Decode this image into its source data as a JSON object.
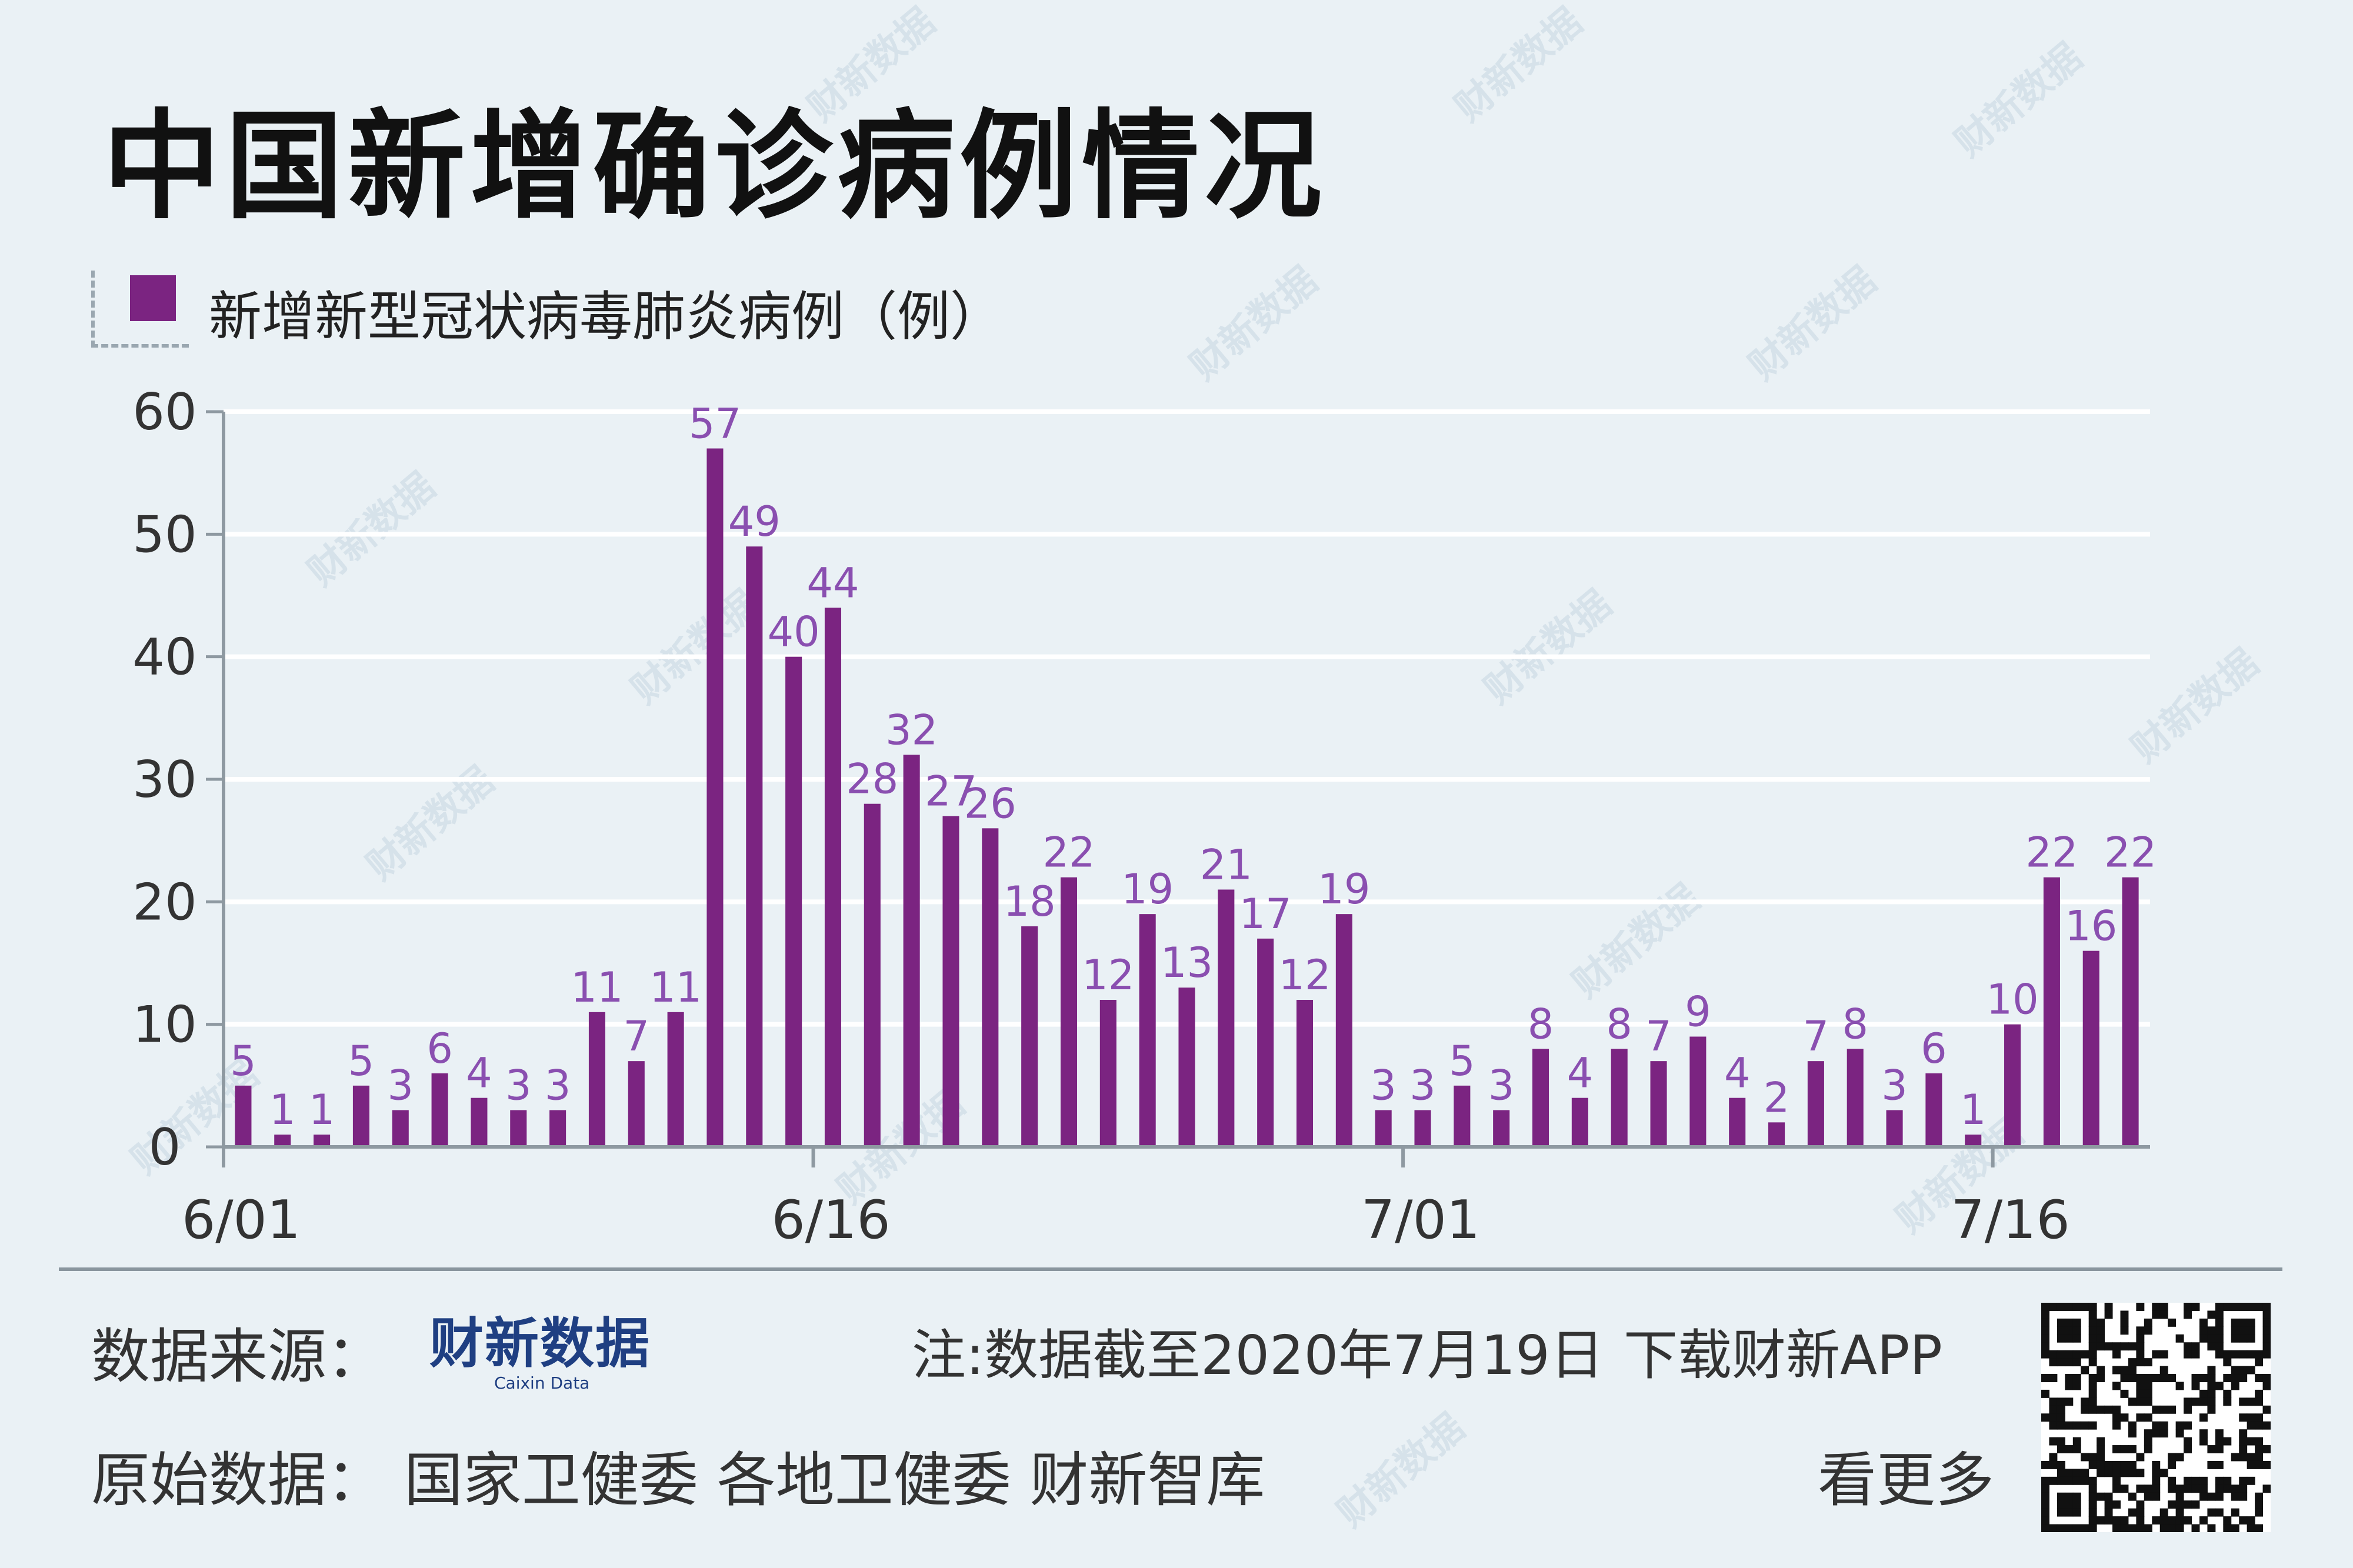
{
  "title": "中国新增确诊病例情况",
  "legend": {
    "label": "新增新型冠状病毒肺炎病例（例）",
    "color": "#7b2481"
  },
  "watermark": "财新数据",
  "chart_data": {
    "type": "bar",
    "title": "中国新增确诊病例情况",
    "series": [
      {
        "name": "新增新型冠状病毒肺炎病例（例）",
        "values": [
          5,
          1,
          1,
          5,
          3,
          6,
          4,
          3,
          3,
          11,
          7,
          11,
          57,
          49,
          40,
          44,
          28,
          32,
          27,
          26,
          18,
          22,
          12,
          19,
          13,
          21,
          17,
          12,
          19,
          3,
          3,
          5,
          3,
          8,
          4,
          8,
          7,
          9,
          4,
          2,
          7,
          8,
          3,
          6,
          1,
          10,
          22,
          16,
          22
        ]
      }
    ],
    "x_tick_labels": [
      "6/01",
      "6/16",
      "7/01",
      "7/16"
    ],
    "x_tick_indices": [
      0,
      15,
      30,
      45
    ],
    "y_ticks": [
      0,
      10,
      20,
      30,
      40,
      50,
      60
    ],
    "ylim": [
      0,
      60
    ],
    "grid": true,
    "bar_color": "#7b2481",
    "label_color": "#8a4fb0",
    "axis_color": "#8e99a1"
  },
  "footer": {
    "source_label": "数据来源：",
    "brand_name": "财新数据",
    "brand_sub": "Caixin Data",
    "note": "注:数据截至2020年7月19日",
    "download": "下载财新APP",
    "origin": "原始数据：  国家卫健委  各地卫健委  财新智库",
    "see_more": "看更多"
  }
}
